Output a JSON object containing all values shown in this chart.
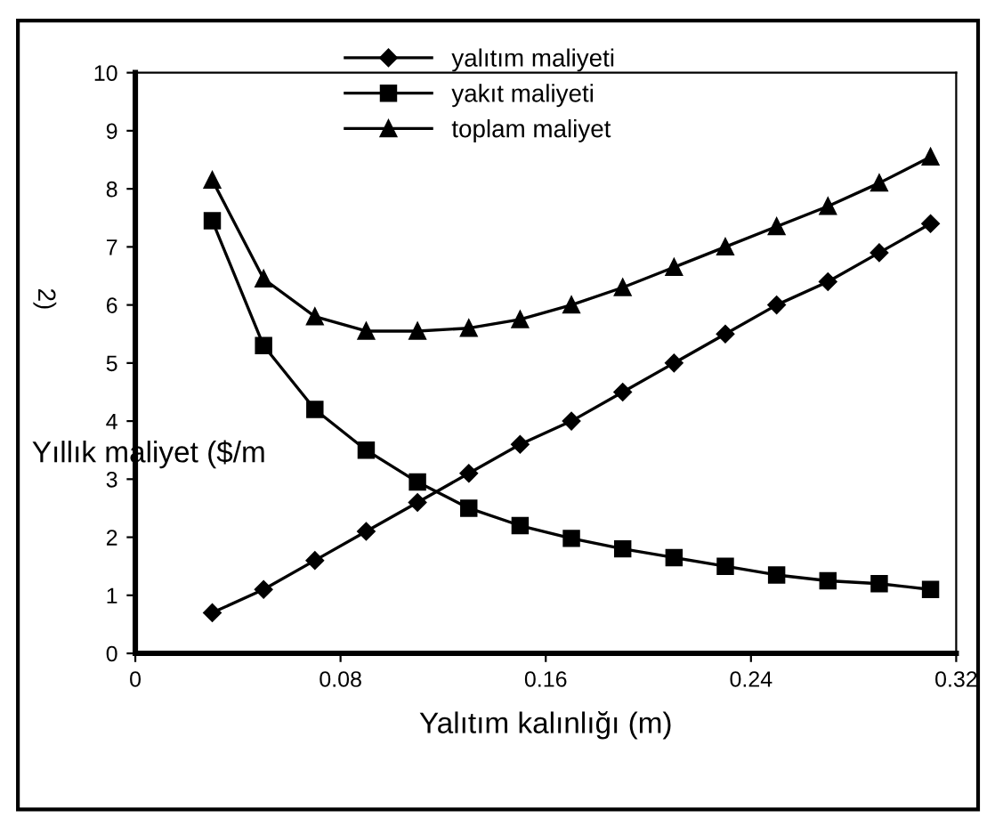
{
  "chart_data": {
    "type": "line",
    "xlabel": "Yalıtım kalınlığı (m)",
    "ylabel": "Yıllık maliyet ($/m",
    "annotations": [
      "2)"
    ],
    "x": [
      0.03,
      0.05,
      0.07,
      0.09,
      0.11,
      0.13,
      0.15,
      0.17,
      0.19,
      0.21,
      0.23,
      0.25,
      0.27,
      0.29,
      0.31
    ],
    "series": [
      {
        "name": "yalıtım maliyeti",
        "color": "#000000",
        "marker": "diamond",
        "values": [
          0.7,
          1.1,
          1.6,
          2.1,
          2.6,
          3.1,
          3.6,
          4.0,
          4.5,
          5.0,
          5.5,
          6.0,
          6.4,
          6.9,
          7.4
        ]
      },
      {
        "name": "yakıt maliyeti",
        "color": "#000000",
        "marker": "square",
        "values": [
          7.45,
          5.3,
          4.2,
          3.5,
          2.95,
          2.5,
          2.2,
          1.98,
          1.8,
          1.65,
          1.5,
          1.35,
          1.25,
          1.2,
          1.1
        ]
      },
      {
        "name": "toplam maliyet",
        "color": "#000000",
        "marker": "triangle",
        "values": [
          8.15,
          6.45,
          5.8,
          5.55,
          5.55,
          5.6,
          5.75,
          6.0,
          6.3,
          6.65,
          7.0,
          7.35,
          7.7,
          8.1,
          8.55
        ]
      }
    ],
    "xlim": [
      0,
      0.32
    ],
    "xticks": [
      0,
      0.08,
      0.16,
      0.24,
      0.32
    ],
    "ylim": [
      0,
      10
    ],
    "yticks": [
      0,
      1,
      2,
      3,
      4,
      5,
      6,
      7,
      8,
      9,
      10
    ],
    "grid": false,
    "legend": "top",
    "line_style": "solid"
  }
}
